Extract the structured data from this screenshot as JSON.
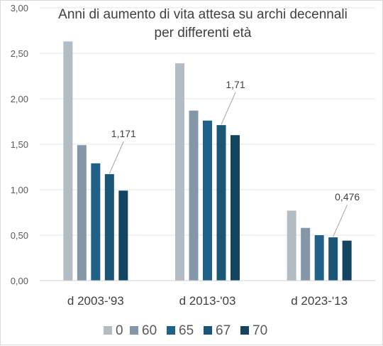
{
  "chart_data": {
    "type": "bar",
    "title": [
      "Anni di aumento di vita attesa su archi decennali",
      "per differenti età"
    ],
    "xlabel": "",
    "ylabel": "",
    "ylim": [
      0,
      3
    ],
    "yticks": [
      "0,00",
      "0,50",
      "1,00",
      "1,50",
      "2,00",
      "2,50",
      "3,00"
    ],
    "categories": [
      "d 2003-'93",
      "d 2013-'03",
      "d 2023-'13"
    ],
    "series": [
      {
        "name": "0",
        "color": "#b4bcc3",
        "values": [
          2.63,
          2.39,
          0.77
        ]
      },
      {
        "name": "60",
        "color": "#8497a8",
        "values": [
          1.49,
          1.87,
          0.58
        ]
      },
      {
        "name": "65",
        "color": "#1f6188",
        "values": [
          1.29,
          1.76,
          0.5
        ]
      },
      {
        "name": "67",
        "color": "#1a5675",
        "values": [
          1.171,
          1.71,
          0.476
        ]
      },
      {
        "name": "70",
        "color": "#134560",
        "values": [
          0.99,
          1.6,
          0.44
        ]
      }
    ],
    "data_labels": [
      {
        "series": 3,
        "category": 0,
        "text": "1,171"
      },
      {
        "series": 3,
        "category": 1,
        "text": "1,71"
      },
      {
        "series": 3,
        "category": 2,
        "text": "0,476"
      }
    ],
    "grid": true,
    "legend": "bottom"
  }
}
